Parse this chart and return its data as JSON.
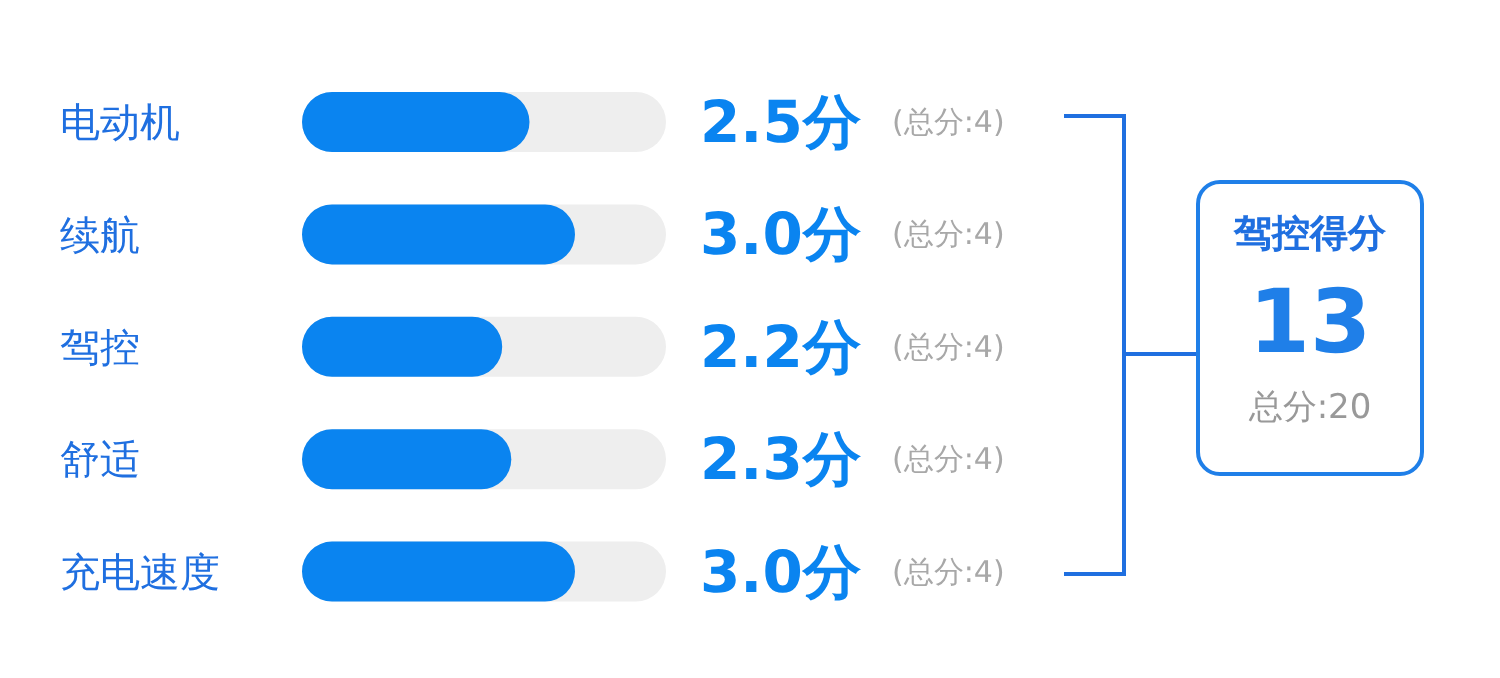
{
  "chart_data": {
    "type": "bar",
    "orientation": "horizontal",
    "categories": [
      "电动机",
      "续航",
      "驾控",
      "舒适",
      "充电速度"
    ],
    "values": [
      2.5,
      3.0,
      2.2,
      2.3,
      3.0
    ],
    "value_labels": [
      "2.5分",
      "3.0分",
      "2.2分",
      "2.3分",
      "3.0分"
    ],
    "color": "#0a84f0",
    "xlim": [
      0,
      4
    ],
    "tick_labels": "y",
    "annotations": [
      "(总分:4)",
      "(总分:4)",
      "(总分:4)",
      "(总分:4)",
      "(总分:4)",
      "驾控得分",
      "13",
      "总分:20"
    ]
  }
}
